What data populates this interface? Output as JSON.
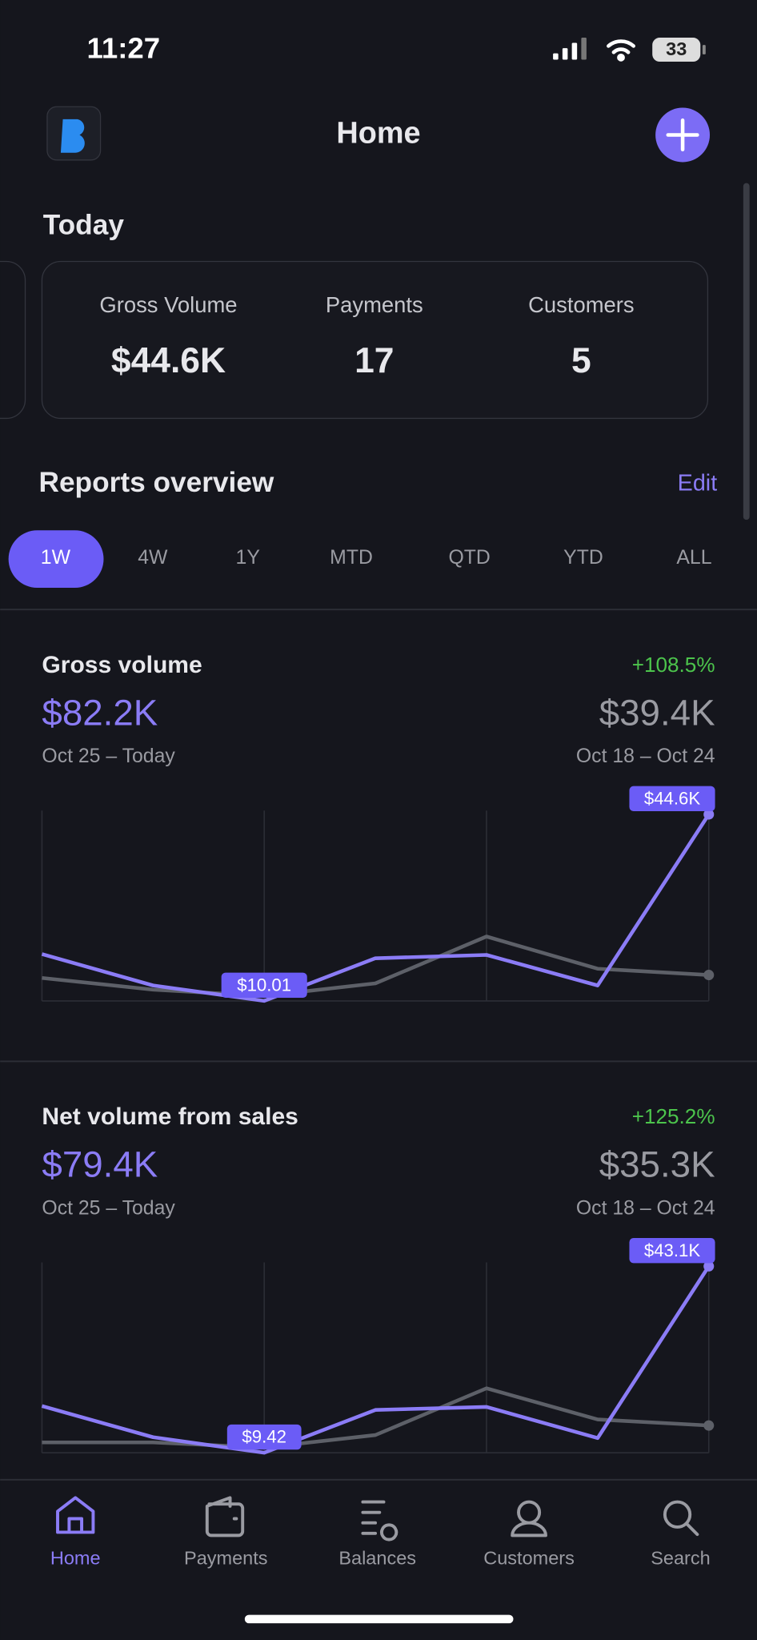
{
  "status_bar": {
    "time": "11:27",
    "battery": "33"
  },
  "header": {
    "title": "Home"
  },
  "today": {
    "title": "Today",
    "stats": [
      {
        "label": "Gross Volume",
        "value": "$44.6K"
      },
      {
        "label": "Payments",
        "value": "17"
      },
      {
        "label": "Customers",
        "value": "5"
      }
    ]
  },
  "reports": {
    "title": "Reports overview",
    "edit": "Edit",
    "tabs": [
      "1W",
      "4W",
      "1Y",
      "MTD",
      "QTD",
      "YTD",
      "ALL"
    ]
  },
  "chart_data": [
    {
      "type": "line",
      "title": "Gross volume",
      "change": "+108.5%",
      "current_value": "$82.2K",
      "current_period": "Oct 25 – Today",
      "previous_value": "$39.4K",
      "previous_period": "Oct 18 – Oct 24",
      "ylim": [
        0,
        45000
      ],
      "series": [
        {
          "color": "#8b7cf6",
          "values": [
            11200,
            3700,
            10.01,
            10200,
            11000,
            3700,
            44600
          ],
          "value_labels": [
            null,
            null,
            "$10.01",
            null,
            null,
            null,
            "$44.6K"
          ]
        },
        {
          "color": "#5d6068",
          "values": [
            5500,
            2700,
            1200,
            4200,
            15400,
            7700,
            6200
          ]
        }
      ]
    },
    {
      "type": "line",
      "title": "Net volume from sales",
      "change": "+125.2%",
      "current_value": "$79.4K",
      "current_period": "Oct 25 – Today",
      "previous_value": "$35.3K",
      "previous_period": "Oct 18 – Oct 24",
      "ylim": [
        0,
        43500
      ],
      "series": [
        {
          "color": "#8b7cf6",
          "values": [
            10800,
            3600,
            9.42,
            9900,
            10600,
            3400,
            43100
          ],
          "value_labels": [
            null,
            null,
            "$9.42",
            null,
            null,
            null,
            "$43.1K"
          ]
        },
        {
          "color": "#5d6068",
          "values": [
            2400,
            2400,
            1200,
            4100,
            14900,
            7700,
            6300
          ]
        }
      ]
    }
  ],
  "nav": [
    "Home",
    "Payments",
    "Balances",
    "Customers",
    "Search"
  ]
}
